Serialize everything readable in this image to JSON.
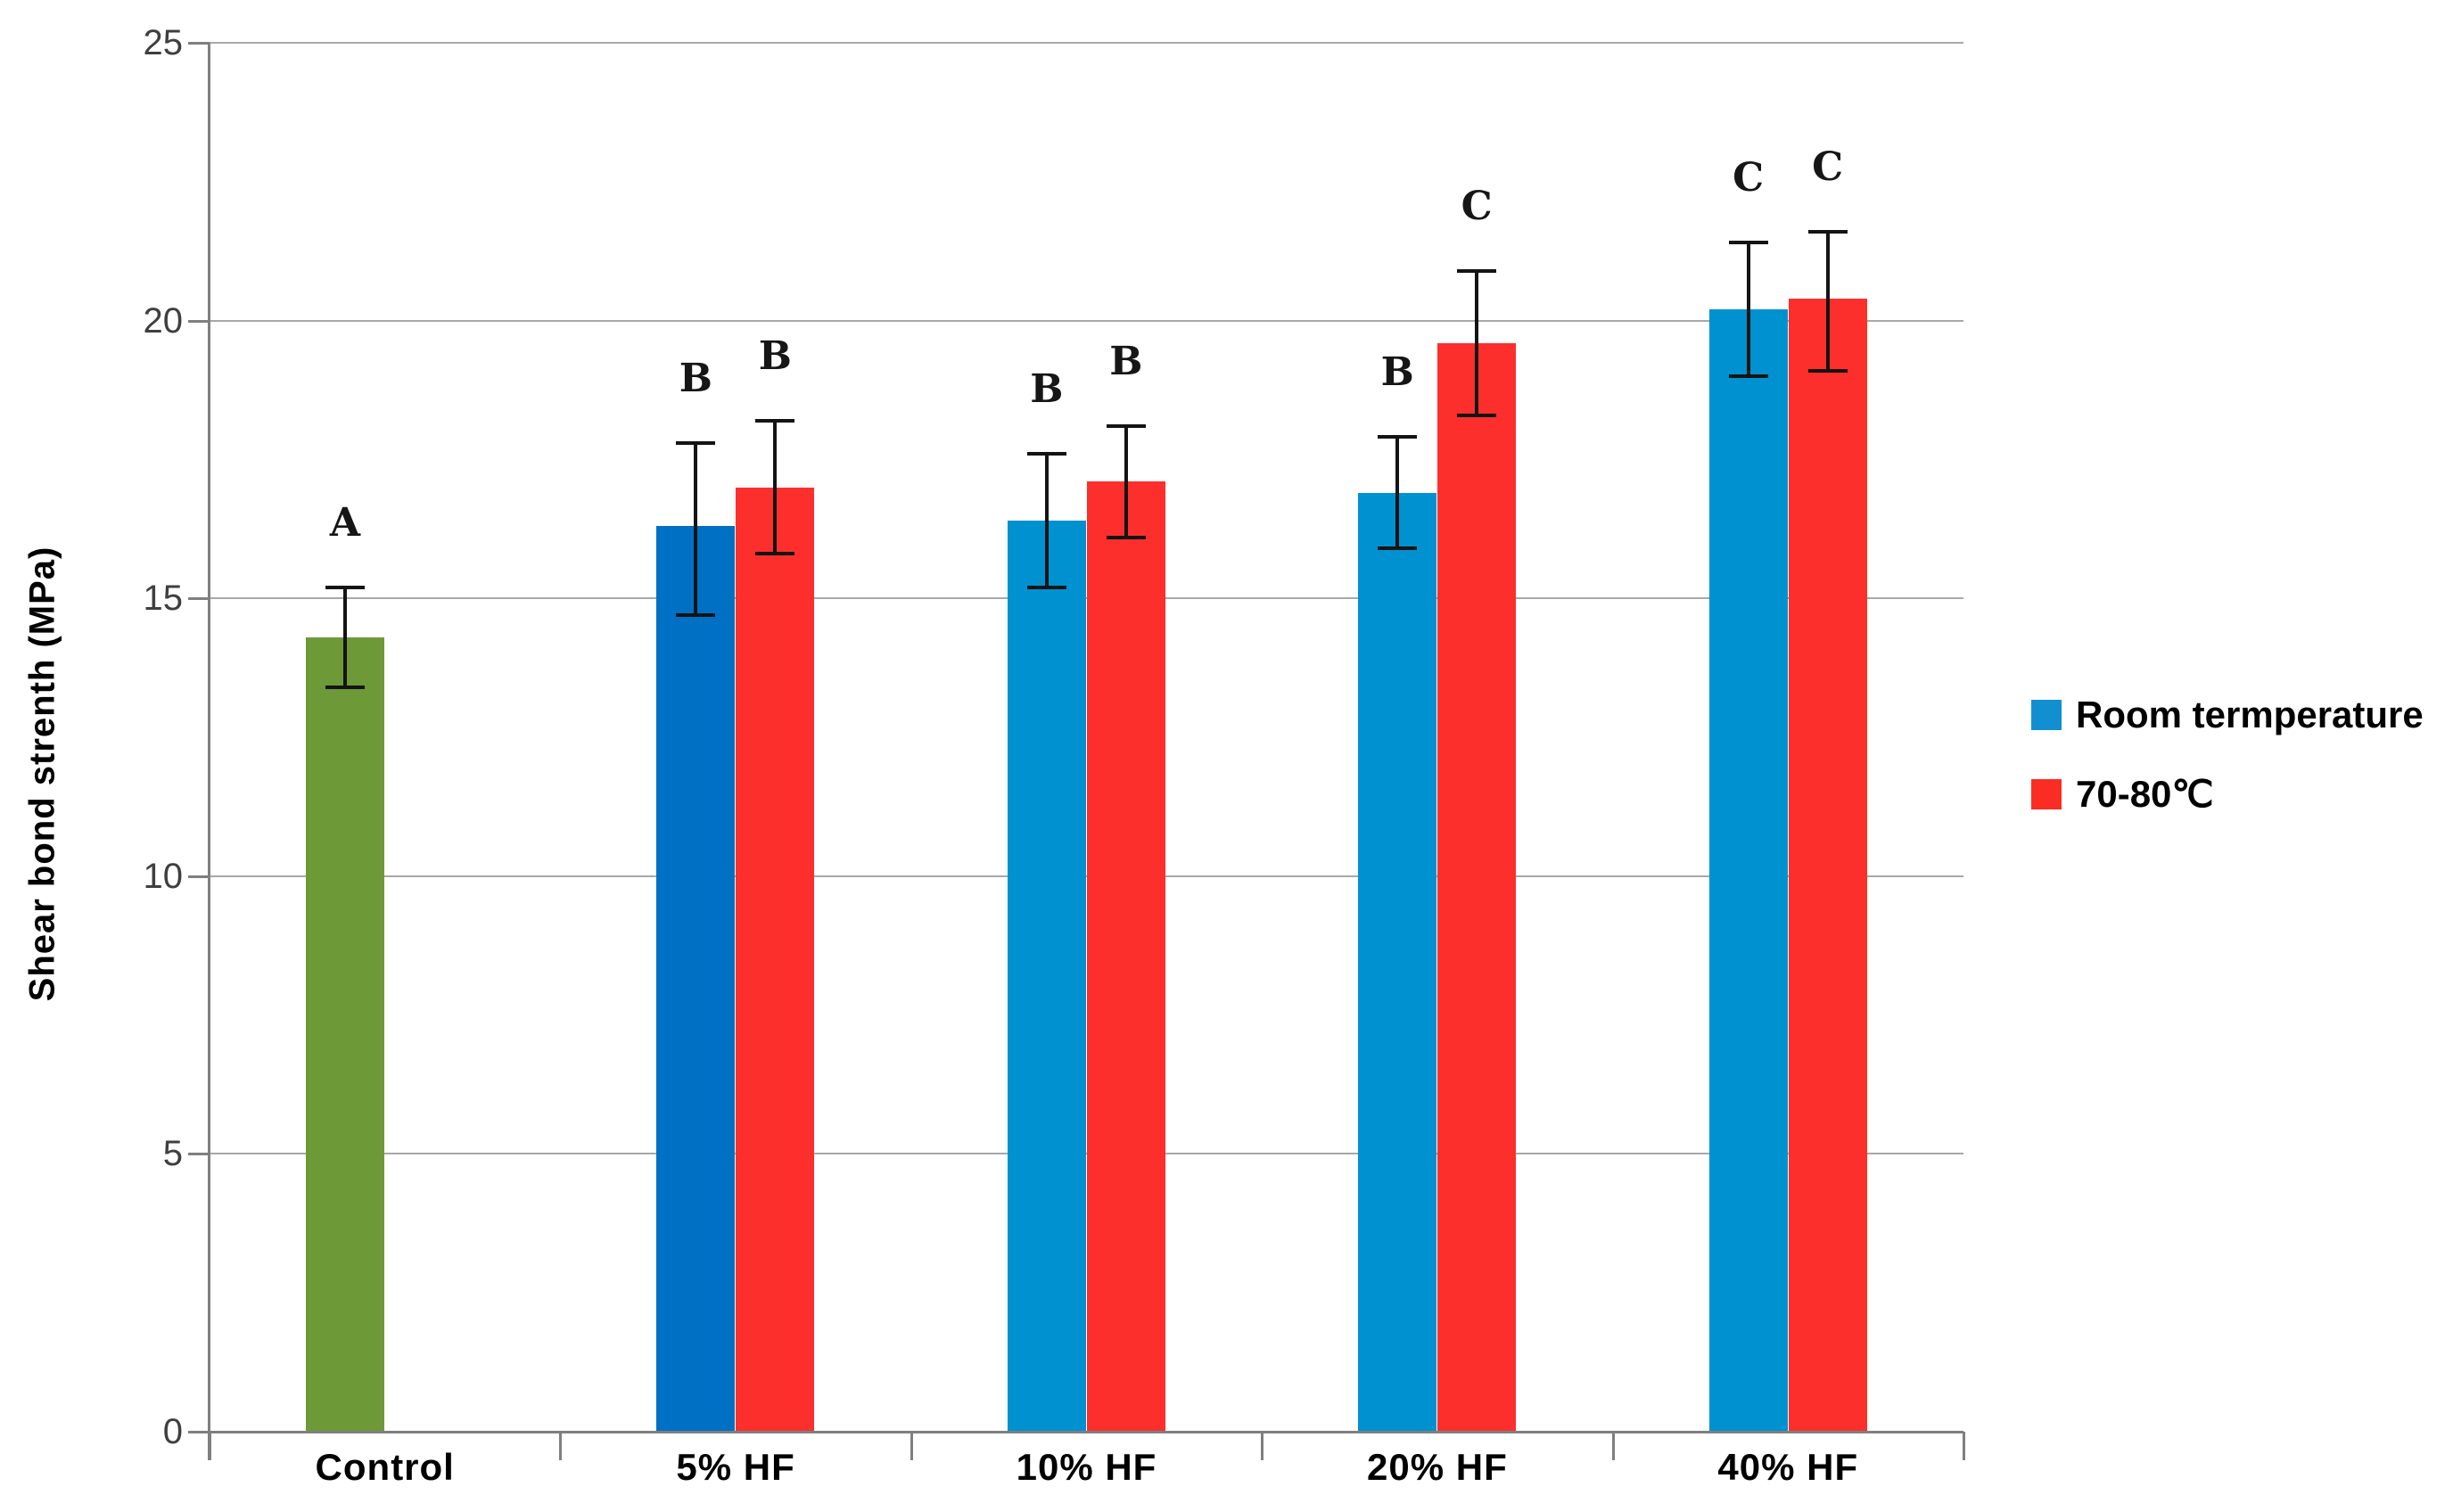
{
  "figure": {
    "background": "#ffffff",
    "colors": {
      "gridline": "#a8a8a8",
      "axis": "#7f7f7f",
      "error_bar": "#141414",
      "tick_label": "#3f3f3f"
    }
  },
  "chart_data": {
    "type": "bar",
    "title": "",
    "xlabel": "",
    "ylabel": "Shear bond strenth (MPa)",
    "ylim": [
      0,
      25
    ],
    "yticks": [
      0,
      5,
      10,
      15,
      20,
      25
    ],
    "grid": true,
    "legend_position": "middle-right",
    "categories": [
      "Control",
      "5% HF",
      "10% HF",
      "20% HF",
      "40% HF"
    ],
    "series": [
      {
        "name": "Room termperature",
        "color": "#0091d0",
        "values": [
          null,
          16.3,
          16.4,
          16.9,
          20.2
        ]
      },
      {
        "name": "70-80℃",
        "color": "#fc2f2d",
        "values": [
          null,
          17.0,
          17.1,
          19.6,
          20.4
        ]
      },
      {
        "name": "Control",
        "color": "#6e9937",
        "values": [
          14.3,
          null,
          null,
          null,
          null
        ]
      }
    ],
    "groups": [
      {
        "category": "Control",
        "bars": [
          {
            "series": "Control",
            "slot": 0,
            "value": 14.3,
            "err_low": 13.4,
            "err_high": 15.2,
            "letter": "A",
            "color": "#6e9937"
          }
        ]
      },
      {
        "category": "5% HF",
        "bars": [
          {
            "series": "Room termperature",
            "slot": 0,
            "value": 16.3,
            "err_low": 14.7,
            "err_high": 17.8,
            "letter": "B",
            "color": "#0070c4"
          },
          {
            "series": "70-80℃",
            "slot": 1,
            "value": 17.0,
            "err_low": 15.8,
            "err_high": 18.2,
            "letter": "B",
            "color": "#fc2f2d"
          }
        ]
      },
      {
        "category": "10% HF",
        "bars": [
          {
            "series": "Room termperature",
            "slot": 0,
            "value": 16.4,
            "err_low": 15.2,
            "err_high": 17.6,
            "letter": "B",
            "color": "#0091d0"
          },
          {
            "series": "70-80℃",
            "slot": 1,
            "value": 17.1,
            "err_low": 16.1,
            "err_high": 18.1,
            "letter": "B",
            "color": "#fc2f2d"
          }
        ]
      },
      {
        "category": "20% HF",
        "bars": [
          {
            "series": "Room termperature",
            "slot": 0,
            "value": 16.9,
            "err_low": 15.9,
            "err_high": 17.9,
            "letter": "B",
            "color": "#0091d0"
          },
          {
            "series": "70-80℃",
            "slot": 1,
            "value": 19.6,
            "err_low": 18.3,
            "err_high": 20.9,
            "letter": "C",
            "color": "#fc2f2d"
          }
        ]
      },
      {
        "category": "40% HF",
        "bars": [
          {
            "series": "Room termperature",
            "slot": 0,
            "value": 20.2,
            "err_low": 19.0,
            "err_high": 21.4,
            "letter": "C",
            "color": "#0091d0"
          },
          {
            "series": "70-80℃",
            "slot": 1,
            "value": 20.4,
            "err_low": 19.1,
            "err_high": 21.6,
            "letter": "C",
            "color": "#fc2f2d"
          }
        ]
      }
    ],
    "legend": [
      {
        "label": "Room termperature",
        "color": "#128fd0"
      },
      {
        "label": "70-80℃",
        "color": "#f92d23"
      }
    ]
  }
}
